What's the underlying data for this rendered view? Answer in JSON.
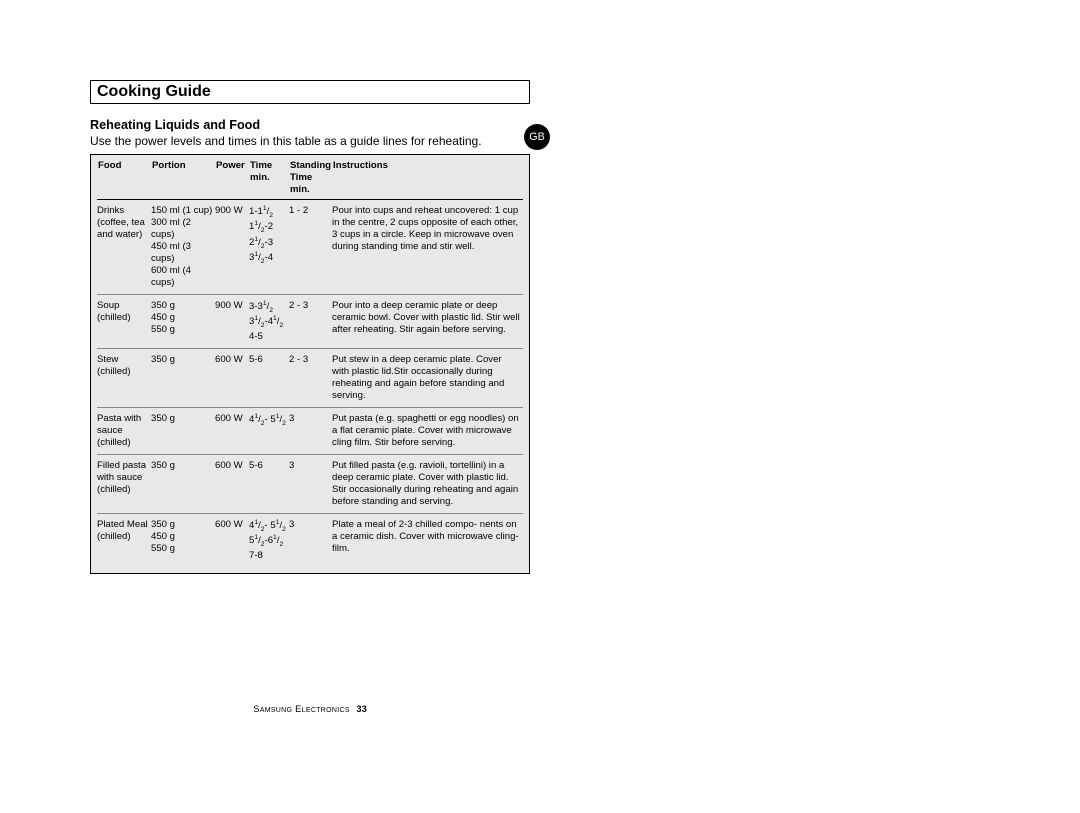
{
  "title": "Cooking Guide",
  "badge": "GB",
  "subheading": "Reheating Liquids and Food",
  "intro": "Use the power levels and times in this table as a guide lines for reheating.",
  "headers": {
    "food": "Food",
    "portion": "Portion",
    "power": "Power",
    "time_l1": "Time",
    "time_l2": "min.",
    "stand_l1": "Standing",
    "stand_l2": "Time min.",
    "inst": "Instructions"
  },
  "rows": [
    {
      "food": "Drinks (coffee, tea and water)",
      "portion": "150 ml (1 cup)\n300 ml (2 cups)\n450 ml (3 cups)\n600 ml (4 cups)",
      "power": "900 W",
      "time_html": "1-1<sup>1</sup>/<sub>2</sub><br>1<sup>1</sup>/<sub>2</sub>-2<br>2<sup>1</sup>/<sub>2</sub>-3<br>3<sup>1</sup>/<sub>2</sub>-4",
      "standing": "1 - 2",
      "inst": "Pour into cups and reheat uncovered: 1 cup in the centre, 2 cups opposite of each other, 3 cups in a circle. Keep in microwave oven during standing time and stir well."
    },
    {
      "food": "Soup (chilled)",
      "portion": "350 g\n450 g\n550 g",
      "power": "900 W",
      "time_html": "3-3<sup>1</sup>/<sub>2</sub><br>3<sup>1</sup>/<sub>2</sub>-4<sup>1</sup>/<sub>2</sub><br>4-5",
      "standing": "2 - 3",
      "inst": "Pour into a deep ceramic plate or deep ceramic bowl. Cover with plastic lid. Stir well after reheating. Stir again before serving."
    },
    {
      "food": "Stew (chilled)",
      "portion": "350 g",
      "power": "600 W",
      "time_html": "5-6",
      "standing": "2 - 3",
      "inst": "Put stew in a deep ceramic plate. Cover with plastic lid.Stir occasionally during reheating and again before standing and serving."
    },
    {
      "food": "Pasta with sauce (chilled)",
      "portion": "350 g",
      "power": "600 W",
      "time_html": "4<sup>1</sup>/<sub>2</sub>- 5<sup>1</sup>/<sub>2</sub>",
      "standing": "3",
      "inst": "Put pasta (e.g. spaghetti or egg noodles) on a flat ceramic plate. Cover with microwave cling film. Stir before serving."
    },
    {
      "food": "Filled pasta with sauce (chilled)",
      "portion": "350 g",
      "power": "600 W",
      "time_html": "5-6",
      "standing": "3",
      "inst": "Put filled pasta (e.g. ravioli, tortellini) in a deep ceramic plate. Cover with plastic lid. Stir occasionally during reheating and again before standing and serving."
    },
    {
      "food": "Plated Meal (chilled)",
      "portion": "350 g\n450 g\n550 g",
      "power": "600 W",
      "time_html": "4<sup>1</sup>/<sub>2</sub>- 5<sup>1</sup>/<sub>2</sub><br>5<sup>1</sup>/<sub>2</sub>-6<sup>1</sup>/<sub>2</sub><br>7-8",
      "standing": "3",
      "inst": "Plate a meal of 2-3 chilled compo- nents on a ceramic dish. Cover with microwave cling-film."
    }
  ],
  "footer": {
    "brand": "Samsung Electronics",
    "page": "33"
  },
  "colors": {
    "table_bg": "#e8e8e8",
    "border": "#000000",
    "row_rule": "#888888",
    "text": "#000000",
    "badge_bg": "#000000",
    "badge_fg": "#ffffff"
  }
}
